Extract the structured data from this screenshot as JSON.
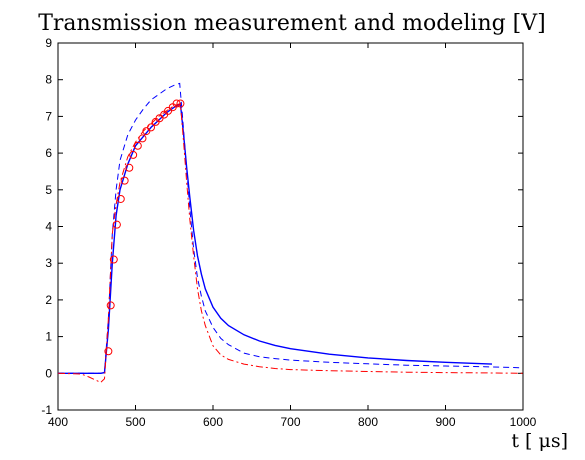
{
  "chart_data": {
    "type": "line",
    "title": "Transmission measurement and modeling [V]",
    "xlabel": "t [ μs]",
    "ylabel": "",
    "xlim": [
      400,
      1000
    ],
    "ylim": [
      -1,
      9
    ],
    "x_ticks": [
      400,
      500,
      600,
      700,
      800,
      900,
      1000
    ],
    "y_ticks": [
      -1,
      0,
      1,
      2,
      3,
      4,
      5,
      6,
      7,
      8,
      9
    ],
    "grid": false,
    "series": [
      {
        "style": "solid",
        "color": "#0000ff",
        "x": [
          400,
          455,
          460,
          465,
          470,
          475,
          480,
          490,
          500,
          510,
          520,
          530,
          540,
          550,
          558,
          562,
          566,
          570,
          575,
          580,
          585,
          590,
          600,
          610,
          620,
          640,
          660,
          680,
          700,
          750,
          800,
          850,
          900,
          960
        ],
        "y": [
          0,
          0,
          0.02,
          1.2,
          3.0,
          4.3,
          5.0,
          5.7,
          6.2,
          6.45,
          6.7,
          6.9,
          7.1,
          7.25,
          7.35,
          6.5,
          5.6,
          4.8,
          3.9,
          3.2,
          2.7,
          2.3,
          1.8,
          1.5,
          1.3,
          1.05,
          0.88,
          0.76,
          0.67,
          0.52,
          0.42,
          0.35,
          0.3,
          0.25
        ]
      },
      {
        "style": "dashed",
        "color": "#0000ff",
        "x": [
          400,
          455,
          460,
          465,
          470,
          475,
          480,
          490,
          500,
          510,
          520,
          530,
          540,
          550,
          557,
          561,
          565,
          570,
          575,
          580,
          585,
          590,
          600,
          610,
          620,
          640,
          660,
          680,
          700,
          750,
          800,
          850,
          900,
          950,
          1000
        ],
        "y": [
          0,
          0,
          0.02,
          1.5,
          3.8,
          5.0,
          5.8,
          6.5,
          6.9,
          7.2,
          7.45,
          7.6,
          7.75,
          7.85,
          7.9,
          6.9,
          5.8,
          4.5,
          3.4,
          2.6,
          2.1,
          1.7,
          1.25,
          0.95,
          0.78,
          0.55,
          0.45,
          0.4,
          0.36,
          0.3,
          0.26,
          0.22,
          0.2,
          0.18,
          0.15
        ]
      },
      {
        "style": "dashdot",
        "color": "#ff0000",
        "x": [
          400,
          430,
          440,
          450,
          455,
          460,
          465,
          470,
          475,
          480,
          490,
          500,
          510,
          520,
          530,
          540,
          550,
          558,
          562,
          566,
          570,
          575,
          580,
          585,
          590,
          600,
          610,
          620,
          640,
          660,
          680,
          700,
          750,
          800,
          850,
          900,
          950,
          1000
        ],
        "y": [
          0,
          -0.02,
          -0.1,
          -0.2,
          -0.25,
          -0.15,
          1.5,
          3.8,
          4.6,
          5.2,
          5.9,
          6.3,
          6.6,
          6.8,
          7.0,
          7.15,
          7.3,
          7.35,
          6.3,
          5.2,
          4.2,
          3.2,
          2.3,
          1.7,
          1.3,
          0.75,
          0.5,
          0.38,
          0.25,
          0.18,
          0.13,
          0.1,
          0.07,
          0.05,
          0.03,
          0.02,
          0.01,
          0
        ]
      },
      {
        "style": "circles",
        "color": "#ff0000",
        "x": [
          465,
          468,
          472,
          476,
          481,
          486,
          492,
          497,
          503,
          509,
          514,
          520,
          526,
          531,
          537,
          542,
          548,
          553,
          558
        ],
        "y": [
          0.6,
          1.85,
          3.1,
          4.05,
          4.75,
          5.25,
          5.6,
          5.95,
          6.2,
          6.4,
          6.6,
          6.7,
          6.85,
          6.95,
          7.05,
          7.15,
          7.25,
          7.35,
          7.35
        ]
      }
    ]
  }
}
